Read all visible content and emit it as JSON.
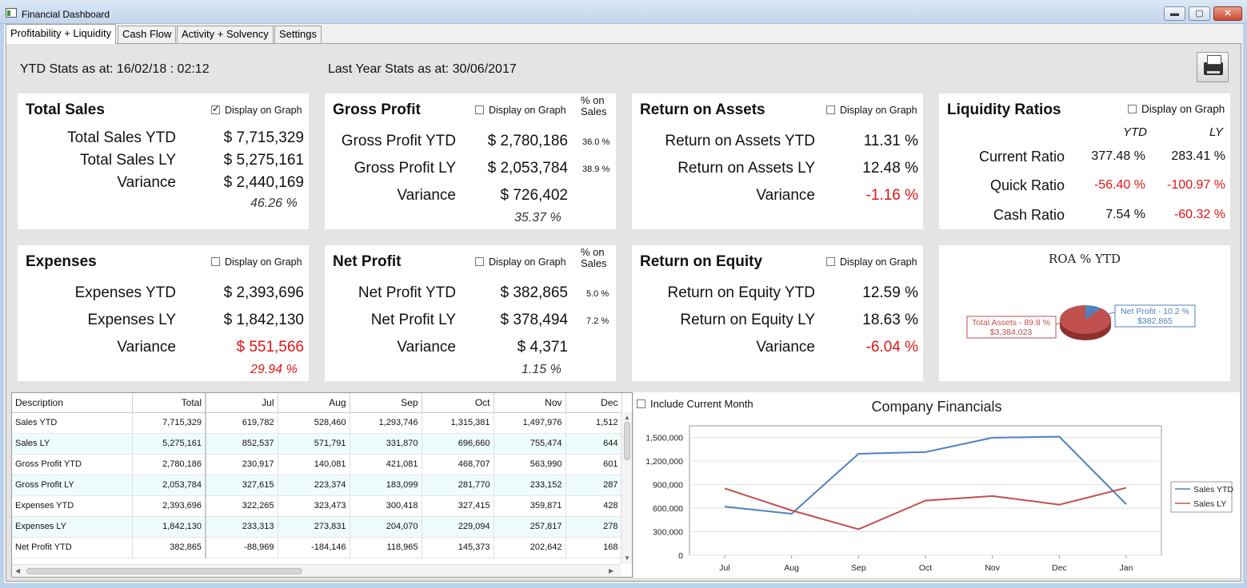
{
  "window": {
    "title": "Financial Dashboard",
    "min_glyph": "▬",
    "max_glyph": "▢",
    "close_glyph": "✕"
  },
  "tabs": [
    {
      "label": "Profitability + Liquidity",
      "active": true
    },
    {
      "label": "Cash Flow",
      "active": false
    },
    {
      "label": "Activity + Solvency",
      "active": false
    },
    {
      "label": "Settings",
      "active": false
    }
  ],
  "header": {
    "ytd_stats": "YTD Stats as at: 16/02/18 : 02:12",
    "ly_stats": "Last Year Stats as at: 30/06/2017"
  },
  "cards": {
    "total_sales": {
      "title": "Total Sales",
      "checkbox_label": "Display on Graph",
      "checked": true,
      "rows": [
        {
          "label": "Total Sales YTD",
          "value": "$ 7,715,329"
        },
        {
          "label": "Total Sales LY",
          "value": "$ 5,275,161"
        },
        {
          "label": "Variance",
          "value": "$ 2,440,169"
        }
      ],
      "pct": "46.26 %"
    },
    "gross_profit": {
      "title": "Gross Profit",
      "checkbox_label": "Display on Graph",
      "checked": false,
      "pct_head": "% on Sales",
      "rows": [
        {
          "label": "Gross Profit YTD",
          "value": "$ 2,780,186",
          "small": "36.0 %"
        },
        {
          "label": "Gross Profit LY",
          "value": "$ 2,053,784",
          "small": "38.9 %"
        },
        {
          "label": "Variance",
          "value": "$ 726,402"
        }
      ],
      "pct": "35.37 %"
    },
    "roa": {
      "title": "Return on Assets",
      "checkbox_label": "Display on Graph",
      "checked": false,
      "rows": [
        {
          "label": "Return on Assets YTD",
          "value": "11.31 %"
        },
        {
          "label": "Return on Assets LY",
          "value": "12.48 %"
        },
        {
          "label": "Variance",
          "value": "-1.16 %"
        }
      ]
    },
    "liquidity": {
      "title": "Liquidity Ratios",
      "checkbox_label": "Display on Graph",
      "checked": false,
      "col_ytd": "YTD",
      "col_ly": "LY",
      "rows": [
        {
          "label": "Current Ratio",
          "ytd": "377.48 %",
          "ly": "283.41 %"
        },
        {
          "label": "Quick Ratio",
          "ytd": "-56.40 %",
          "ly": "-100.97 %"
        },
        {
          "label": "Cash Ratio",
          "ytd": "7.54 %",
          "ly": "-60.32 %"
        }
      ]
    },
    "expenses": {
      "title": "Expenses",
      "checkbox_label": "Display on Graph",
      "checked": false,
      "rows": [
        {
          "label": "Expenses YTD",
          "value": "$ 2,393,696"
        },
        {
          "label": "Expenses LY",
          "value": "$ 1,842,130"
        },
        {
          "label": "Variance",
          "value": "$ 551,566"
        }
      ],
      "pct": "29.94 %"
    },
    "net_profit": {
      "title": "Net Profit",
      "checkbox_label": "Display on Graph",
      "checked": false,
      "pct_head": "% on Sales",
      "rows": [
        {
          "label": "Net Profit YTD",
          "value": "$ 382,865",
          "small": "5.0 %"
        },
        {
          "label": "Net Profit LY",
          "value": "$ 378,494",
          "small": "7.2 %"
        },
        {
          "label": "Variance",
          "value": "$ 4,371"
        }
      ],
      "pct": "1.15 %"
    },
    "roe": {
      "title": "Return on Equity",
      "checkbox_label": "Display on Graph",
      "checked": false,
      "rows": [
        {
          "label": "Return on Equity YTD",
          "value": "12.59 %"
        },
        {
          "label": "Return on Equity LY",
          "value": "18.63 %"
        },
        {
          "label": "Variance",
          "value": "-6.04 %"
        }
      ]
    }
  },
  "colors": {
    "accent_red": "#e31414",
    "series_ytd": "#4f81bd",
    "series_ly": "#c0504d",
    "row_alt": "#eefcfc"
  },
  "grid": {
    "columns": [
      "Description",
      "Total",
      "Jul",
      "Aug",
      "Sep",
      "Oct",
      "Nov",
      "Dec"
    ],
    "rows": [
      [
        "Sales YTD",
        "7,715,329",
        "619,782",
        "528,460",
        "1,293,746",
        "1,315,381",
        "1,497,976",
        "1,512"
      ],
      [
        "Sales LY",
        "5,275,161",
        "852,537",
        "571,791",
        "331,870",
        "696,660",
        "755,474",
        "644"
      ],
      [
        "Gross Profit YTD",
        "2,780,186",
        "230,917",
        "140,081",
        "421,081",
        "468,707",
        "563,990",
        "601"
      ],
      [
        "Gross Profit LY",
        "2,053,784",
        "327,615",
        "223,374",
        "183,099",
        "281,770",
        "233,152",
        "287"
      ],
      [
        "Expenses YTD",
        "2,393,696",
        "322,265",
        "323,473",
        "300,418",
        "327,415",
        "359,871",
        "428"
      ],
      [
        "Expenses LY",
        "1,842,130",
        "233,313",
        "273,831",
        "204,070",
        "229,094",
        "257,817",
        "278"
      ],
      [
        "Net Profit YTD",
        "382,865",
        "-88,969",
        "-184,146",
        "118,965",
        "145,373",
        "202,642",
        "168"
      ]
    ]
  },
  "pie_chart": {
    "chart_data": {
      "type": "pie",
      "title": "ROA % YTD",
      "slices": [
        {
          "label": "Total Assets - 89.8 %",
          "sublabel": "$3,384,023",
          "value": 89.8
        },
        {
          "label": "Net Profit - 10.2 %",
          "sublabel": "$382,865",
          "value": 10.2
        }
      ]
    }
  },
  "line_chart": {
    "include_label": "Include Current Month",
    "include_checked": false,
    "chart_data": {
      "type": "line",
      "title": "Company Financials",
      "categories": [
        "Jul",
        "Aug",
        "Sep",
        "Oct",
        "Nov",
        "Dec",
        "Jan"
      ],
      "ylim": [
        0,
        1650000
      ],
      "yticks": [
        "0",
        "300,000",
        "600,000",
        "900,000",
        "1,200,000",
        "1,500,000"
      ],
      "series": [
        {
          "name": "Sales YTD",
          "values": [
            619782,
            528460,
            1293746,
            1315381,
            1497976,
            1512000,
            650000
          ]
        },
        {
          "name": "Sales LY",
          "values": [
            852537,
            571791,
            331870,
            696660,
            755474,
            644000,
            860000
          ]
        }
      ],
      "legend": "right"
    }
  }
}
